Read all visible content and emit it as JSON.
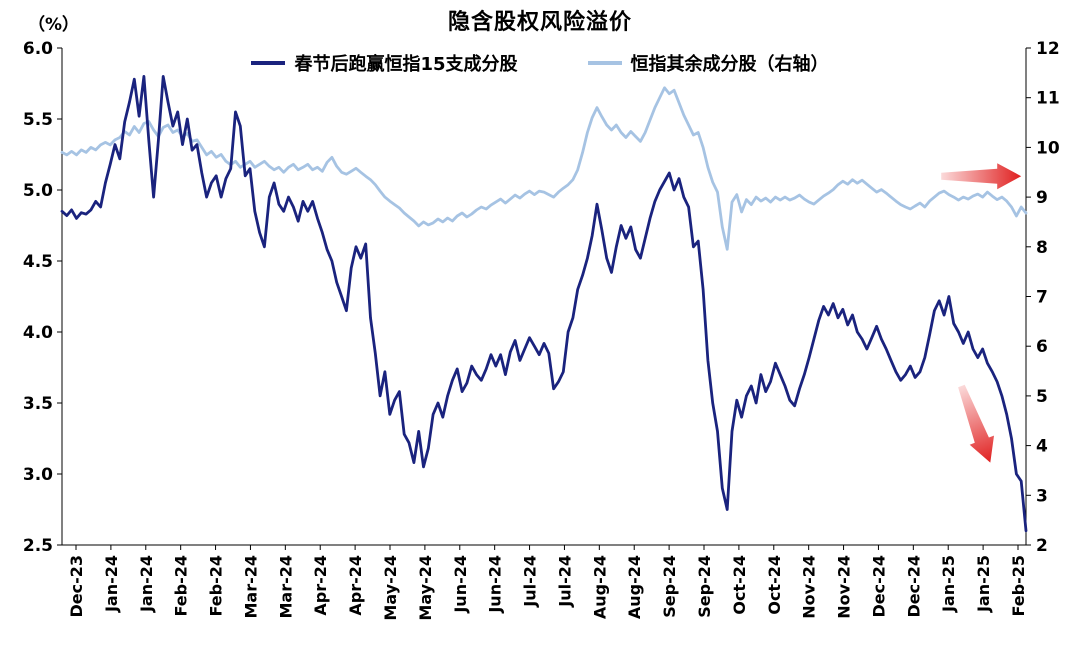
{
  "chart_data": {
    "type": "line",
    "title": "隐含股权风险溢价",
    "left_axis": {
      "unit_label": "（%）",
      "min": 2.5,
      "max": 6.0,
      "ticks": [
        "2.5",
        "3.0",
        "3.5",
        "4.0",
        "4.5",
        "5.0",
        "5.5",
        "6.0"
      ]
    },
    "right_axis": {
      "min": 2,
      "max": 12,
      "ticks": [
        "2",
        "3",
        "4",
        "5",
        "6",
        "7",
        "8",
        "9",
        "10",
        "11",
        "12"
      ]
    },
    "x_labels": [
      "Dec-23",
      "Jan-24",
      "Jan-24",
      "Feb-24",
      "Feb-24",
      "Mar-24",
      "Mar-24",
      "Apr-24",
      "Apr-24",
      "May-24",
      "May-24",
      "Jun-24",
      "Jun-24",
      "Jul-24",
      "Jul-24",
      "Aug-24",
      "Aug-24",
      "Sep-24",
      "Sep-24",
      "Oct-24",
      "Oct-24",
      "Nov-24",
      "Nov-24",
      "Dec-24",
      "Dec-24",
      "Jan-25",
      "Jan-25",
      "Feb-25"
    ],
    "grid": false,
    "legend_position": "top",
    "series": [
      {
        "name": "春节后跑赢恒指15支成分股",
        "axis": "left",
        "color": "#1a237e",
        "values": [
          4.85,
          4.82,
          4.86,
          4.8,
          4.84,
          4.83,
          4.86,
          4.92,
          4.88,
          5.05,
          5.18,
          5.32,
          5.22,
          5.48,
          5.62,
          5.78,
          5.52,
          5.8,
          5.35,
          4.95,
          5.35,
          5.8,
          5.62,
          5.45,
          5.55,
          5.32,
          5.5,
          5.28,
          5.32,
          5.12,
          4.95,
          5.05,
          5.1,
          4.95,
          5.08,
          5.15,
          5.55,
          5.45,
          5.1,
          5.15,
          4.85,
          4.7,
          4.6,
          4.95,
          5.05,
          4.9,
          4.85,
          4.95,
          4.88,
          4.78,
          4.92,
          4.85,
          4.92,
          4.8,
          4.7,
          4.58,
          4.5,
          4.35,
          4.25,
          4.15,
          4.45,
          4.6,
          4.52,
          4.62,
          4.1,
          3.85,
          3.55,
          3.72,
          3.42,
          3.52,
          3.58,
          3.28,
          3.22,
          3.08,
          3.3,
          3.05,
          3.18,
          3.42,
          3.5,
          3.4,
          3.55,
          3.66,
          3.74,
          3.58,
          3.64,
          3.76,
          3.7,
          3.66,
          3.74,
          3.84,
          3.76,
          3.84,
          3.7,
          3.86,
          3.94,
          3.8,
          3.88,
          3.96,
          3.9,
          3.84,
          3.92,
          3.85,
          3.6,
          3.65,
          3.72,
          4.0,
          4.1,
          4.3,
          4.4,
          4.52,
          4.68,
          4.9,
          4.72,
          4.52,
          4.42,
          4.6,
          4.75,
          4.66,
          4.74,
          4.58,
          4.52,
          4.66,
          4.8,
          4.92,
          5.0,
          5.06,
          5.12,
          5.0,
          5.08,
          4.95,
          4.88,
          4.6,
          4.64,
          4.3,
          3.8,
          3.5,
          3.3,
          2.9,
          2.75,
          3.3,
          3.52,
          3.4,
          3.55,
          3.62,
          3.5,
          3.7,
          3.58,
          3.65,
          3.78,
          3.7,
          3.62,
          3.52,
          3.48,
          3.6,
          3.7,
          3.82,
          3.95,
          4.08,
          4.18,
          4.12,
          4.2,
          4.1,
          4.16,
          4.05,
          4.12,
          4.0,
          3.95,
          3.88,
          3.96,
          4.04,
          3.95,
          3.88,
          3.8,
          3.72,
          3.66,
          3.7,
          3.76,
          3.68,
          3.72,
          3.82,
          3.98,
          4.15,
          4.22,
          4.12,
          4.25,
          4.06,
          4.0,
          3.92,
          4.0,
          3.88,
          3.82,
          3.88,
          3.78,
          3.72,
          3.65,
          3.55,
          3.42,
          3.25,
          3.0,
          2.95,
          2.6
        ]
      },
      {
        "name": "恒指其余成分股（右轴）",
        "axis": "right",
        "color": "#a6c3e3",
        "values": [
          9.9,
          9.85,
          9.92,
          9.85,
          9.95,
          9.9,
          10.0,
          9.95,
          10.05,
          10.1,
          10.05,
          10.15,
          10.2,
          10.32,
          10.25,
          10.42,
          10.3,
          10.48,
          10.52,
          10.35,
          10.22,
          10.4,
          10.45,
          10.3,
          10.35,
          10.22,
          10.28,
          10.12,
          10.15,
          10.0,
          9.85,
          9.92,
          9.8,
          9.86,
          9.72,
          9.65,
          9.72,
          9.6,
          9.66,
          9.72,
          9.6,
          9.66,
          9.72,
          9.62,
          9.55,
          9.6,
          9.5,
          9.6,
          9.66,
          9.55,
          9.6,
          9.66,
          9.55,
          9.6,
          9.52,
          9.7,
          9.8,
          9.62,
          9.5,
          9.46,
          9.52,
          9.58,
          9.5,
          9.42,
          9.35,
          9.25,
          9.12,
          9.0,
          8.92,
          8.85,
          8.78,
          8.68,
          8.6,
          8.52,
          8.42,
          8.5,
          8.44,
          8.48,
          8.56,
          8.5,
          8.58,
          8.52,
          8.62,
          8.68,
          8.6,
          8.66,
          8.74,
          8.8,
          8.76,
          8.84,
          8.9,
          8.96,
          8.88,
          8.96,
          9.04,
          8.98,
          9.06,
          9.12,
          9.05,
          9.12,
          9.1,
          9.05,
          9.0,
          9.1,
          9.18,
          9.25,
          9.35,
          9.55,
          9.9,
          10.3,
          10.6,
          10.8,
          10.62,
          10.45,
          10.35,
          10.45,
          10.3,
          10.2,
          10.32,
          10.22,
          10.12,
          10.3,
          10.55,
          10.8,
          11.0,
          11.2,
          11.08,
          11.15,
          10.9,
          10.65,
          10.45,
          10.25,
          10.3,
          10.0,
          9.6,
          9.3,
          9.1,
          8.4,
          7.95,
          8.9,
          9.05,
          8.7,
          8.95,
          8.85,
          9.0,
          8.92,
          8.98,
          8.9,
          9.0,
          8.94,
          9.0,
          8.94,
          8.98,
          9.04,
          8.96,
          8.9,
          8.86,
          8.94,
          9.02,
          9.08,
          9.15,
          9.25,
          9.32,
          9.26,
          9.35,
          9.28,
          9.34,
          9.26,
          9.18,
          9.1,
          9.15,
          9.08,
          9.0,
          8.92,
          8.85,
          8.8,
          8.76,
          8.82,
          8.88,
          8.8,
          8.92,
          9.0,
          9.08,
          9.12,
          9.05,
          9.0,
          8.94,
          9.0,
          8.96,
          9.02,
          9.06,
          9.0,
          9.1,
          9.02,
          8.95,
          9.0,
          8.92,
          8.8,
          8.62,
          8.8,
          8.68
        ]
      }
    ],
    "annotations": [
      {
        "name": "flat-right-arrow",
        "axis": "right",
        "from": {
          "x_frac": 0.912,
          "value": 9.42
        },
        "to": {
          "x_frac": 0.995,
          "value": 9.42
        },
        "color_from": "#fbdada",
        "color_to": "#e02020"
      },
      {
        "name": "down-right-arrow",
        "axis": "left",
        "from": {
          "x_frac": 0.933,
          "value": 3.62
        },
        "to": {
          "x_frac": 0.963,
          "value": 3.08
        },
        "color_from": "#fbdada",
        "color_to": "#e02020"
      }
    ]
  }
}
